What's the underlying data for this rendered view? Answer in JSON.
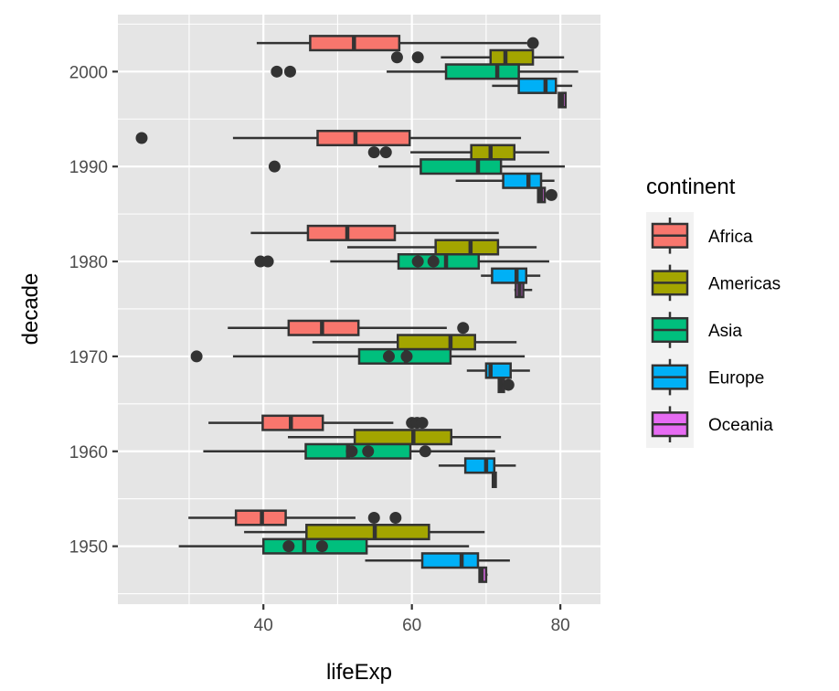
{
  "chart_data": {
    "type": "boxplot",
    "orientation": "horizontal",
    "title": "",
    "xlabel": "lifeExp",
    "ylabel": "decade",
    "xlim": [
      20.4,
      85.4
    ],
    "ylim": [
      1943.9,
      2006.0
    ],
    "x_ticks": [
      40,
      60,
      80
    ],
    "x_tick_labels": [
      "40",
      "60",
      "80"
    ],
    "x_minor_gridlines": [
      30,
      50,
      70
    ],
    "y_ticks": [
      1950,
      1960,
      1970,
      1980,
      1990,
      2000
    ],
    "y_tick_labels": [
      "1950",
      "1960",
      "1970",
      "1980",
      "1990",
      "2000"
    ],
    "y_minor_gridlines": [
      1945,
      1955,
      1965,
      1975,
      1985,
      1995,
      2005
    ],
    "grid": true,
    "panel_background": "#e5e5e5",
    "legend": {
      "title": "continent",
      "position": "right",
      "entries": [
        {
          "label": "Africa",
          "color": "#F8766D"
        },
        {
          "label": "Americas",
          "color": "#A3A500"
        },
        {
          "label": "Asia",
          "color": "#00BF7D"
        },
        {
          "label": "Europe",
          "color": "#00B0F6"
        },
        {
          "label": "Oceania",
          "color": "#E76BF3"
        }
      ]
    },
    "categories": [
      "1950",
      "1960",
      "1970",
      "1980",
      "1990",
      "2000"
    ],
    "series": [
      {
        "name": "Africa",
        "color": "#F8766D",
        "boxes": [
          {
            "decade": 1950,
            "whisker_low": 29.9,
            "q1": 36.3,
            "median": 39.8,
            "q3": 43.0,
            "whisker_high": 52.4,
            "outliers": [
              54.9,
              57.8
            ]
          },
          {
            "decade": 1960,
            "whisker_low": 32.6,
            "q1": 39.9,
            "median": 43.7,
            "q3": 48.0,
            "whisker_high": 57.5,
            "outliers": [
              60.0,
              60.7,
              61.4
            ]
          },
          {
            "decade": 1970,
            "whisker_low": 35.2,
            "q1": 43.4,
            "median": 47.9,
            "q3": 52.8,
            "whisker_high": 64.7,
            "outliers": [
              66.9
            ]
          },
          {
            "decade": 1980,
            "whisker_low": 38.3,
            "q1": 46.0,
            "median": 51.3,
            "q3": 57.7,
            "whisker_high": 71.7,
            "outliers": []
          },
          {
            "decade": 1990,
            "whisker_low": 35.9,
            "q1": 47.3,
            "median": 52.4,
            "q3": 59.7,
            "whisker_high": 74.7,
            "outliers": [
              23.6
            ]
          },
          {
            "decade": 2000,
            "whisker_low": 39.1,
            "q1": 46.3,
            "median": 52.2,
            "q3": 58.3,
            "whisker_high": 75.5,
            "outliers": [
              76.3
            ]
          }
        ]
      },
      {
        "name": "Americas",
        "color": "#A3A500",
        "boxes": [
          {
            "decade": 1950,
            "whisker_low": 37.4,
            "q1": 45.8,
            "median": 55.0,
            "q3": 62.3,
            "whisker_high": 69.8,
            "outliers": []
          },
          {
            "decade": 1960,
            "whisker_low": 43.3,
            "q1": 52.3,
            "median": 60.2,
            "q3": 65.3,
            "whisker_high": 72.0,
            "outliers": []
          },
          {
            "decade": 1970,
            "whisker_low": 46.6,
            "q1": 58.1,
            "median": 65.2,
            "q3": 68.5,
            "whisker_high": 74.1,
            "outliers": []
          },
          {
            "decade": 1980,
            "whisker_low": 51.3,
            "q1": 63.2,
            "median": 67.9,
            "q3": 71.6,
            "whisker_high": 76.8,
            "outliers": []
          },
          {
            "decade": 1990,
            "whisker_low": 59.8,
            "q1": 68.0,
            "median": 70.6,
            "q3": 73.8,
            "whisker_high": 78.5,
            "outliers": [
              54.9,
              56.5
            ]
          },
          {
            "decade": 2000,
            "whisker_low": 63.9,
            "q1": 70.6,
            "median": 72.6,
            "q3": 76.3,
            "whisker_high": 80.5,
            "outliers": [
              58.0,
              60.8
            ]
          }
        ]
      },
      {
        "name": "Asia",
        "color": "#00BF7D",
        "boxes": [
          {
            "decade": 1950,
            "whisker_low": 28.6,
            "q1": 40.0,
            "median": 45.5,
            "q3": 53.9,
            "whisker_high": 67.7,
            "outliers": [
              43.4,
              47.9
            ]
          },
          {
            "decade": 1960,
            "whisker_low": 31.9,
            "q1": 45.7,
            "median": 51.4,
            "q3": 59.8,
            "whisker_high": 71.2,
            "outliers": [
              51.9,
              54.1,
              61.8
            ]
          },
          {
            "decade": 1970,
            "whisker_low": 35.9,
            "q1": 52.9,
            "median": 59.2,
            "q3": 65.2,
            "whisker_high": 75.2,
            "outliers": [
              31.0,
              56.9,
              59.3
            ]
          },
          {
            "decade": 1980,
            "whisker_low": 49.0,
            "q1": 58.2,
            "median": 64.6,
            "q3": 69.0,
            "whisker_high": 78.5,
            "outliers": [
              39.6,
              40.6,
              60.8,
              62.9
            ]
          },
          {
            "decade": 1990,
            "whisker_low": 55.5,
            "q1": 61.2,
            "median": 68.9,
            "q3": 72.0,
            "whisker_high": 80.6,
            "outliers": [
              41.5
            ]
          },
          {
            "decade": 2000,
            "whisker_low": 56.6,
            "q1": 64.6,
            "median": 71.5,
            "q3": 74.4,
            "whisker_high": 82.4,
            "outliers": [
              41.8,
              43.6
            ]
          }
        ]
      },
      {
        "name": "Europe",
        "color": "#00B0F6",
        "boxes": [
          {
            "decade": 1950,
            "whisker_low": 53.7,
            "q1": 61.4,
            "median": 66.7,
            "q3": 68.9,
            "whisker_high": 73.2,
            "outliers": []
          },
          {
            "decade": 1960,
            "whisker_low": 63.6,
            "q1": 67.2,
            "median": 70.0,
            "q3": 71.1,
            "whisker_high": 74.0,
            "outliers": []
          },
          {
            "decade": 1970,
            "whisker_low": 67.4,
            "q1": 70.0,
            "median": 70.6,
            "q3": 73.3,
            "whisker_high": 75.9,
            "outliers": []
          },
          {
            "decade": 1980,
            "whisker_low": 69.3,
            "q1": 70.8,
            "median": 74.1,
            "q3": 75.4,
            "whisker_high": 77.3,
            "outliers": []
          },
          {
            "decade": 1990,
            "whisker_low": 65.9,
            "q1": 72.3,
            "median": 75.7,
            "q3": 77.4,
            "whisker_high": 79.2,
            "outliers": []
          },
          {
            "decade": 2000,
            "whisker_low": 70.8,
            "q1": 74.4,
            "median": 78.0,
            "q3": 79.4,
            "whisker_high": 81.6,
            "outliers": []
          }
        ]
      },
      {
        "name": "Oceania",
        "color": "#E76BF3",
        "boxes": [
          {
            "decade": 1950,
            "whisker_low": 69.0,
            "q1": 69.1,
            "median": 69.4,
            "q3": 70.0,
            "whisker_high": 70.2,
            "outliers": []
          },
          {
            "decade": 1960,
            "whisker_low": 70.8,
            "q1": 70.9,
            "median": 71.1,
            "q3": 71.3,
            "whisker_high": 71.4,
            "outliers": []
          },
          {
            "decade": 1970,
            "whisker_low": 71.6,
            "q1": 71.7,
            "median": 72.0,
            "q3": 72.4,
            "whisker_high": 72.6,
            "outliers": [
              73.0
            ]
          },
          {
            "decade": 1980,
            "whisker_low": 73.8,
            "q1": 74.0,
            "median": 74.5,
            "q3": 75.0,
            "whisker_high": 76.2,
            "outliers": []
          },
          {
            "decade": 1990,
            "whisker_low": 76.9,
            "q1": 77.0,
            "median": 77.4,
            "q3": 77.9,
            "whisker_high": 77.9,
            "outliers": [
              78.8
            ]
          },
          {
            "decade": 2000,
            "whisker_low": 79.7,
            "q1": 79.8,
            "median": 80.2,
            "q3": 80.7,
            "whisker_high": 80.8,
            "outliers": []
          }
        ]
      }
    ]
  }
}
